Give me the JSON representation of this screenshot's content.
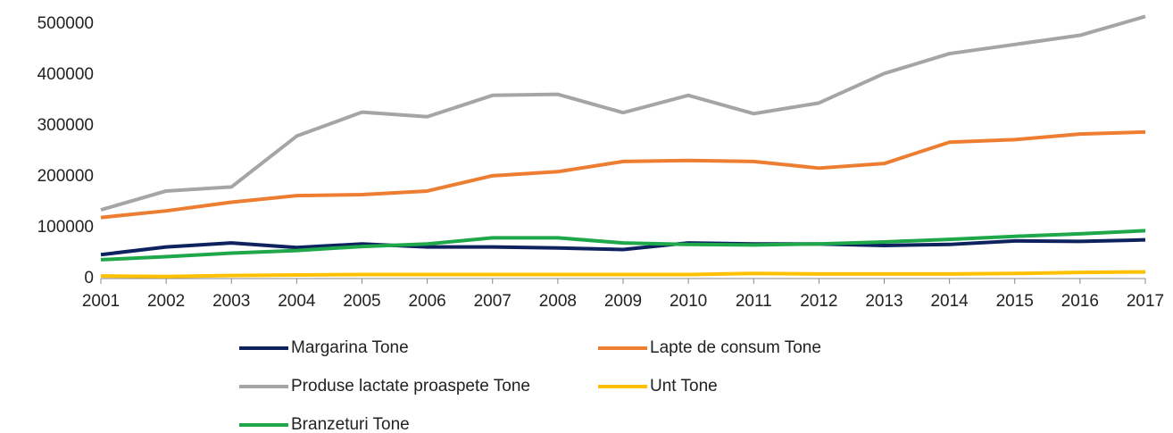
{
  "chart_data": {
    "type": "line",
    "categories": [
      "2001",
      "2002",
      "2003",
      "2004",
      "2005",
      "2006",
      "2007",
      "2008",
      "2009",
      "2010",
      "2011",
      "2012",
      "2013",
      "2014",
      "2015",
      "2016",
      "2017"
    ],
    "series": [
      {
        "name": "Margarina Tone",
        "color": "#0e2260",
        "values": [
          47000,
          62000,
          70000,
          61000,
          68000,
          62000,
          62000,
          60000,
          57000,
          70000,
          68000,
          68000,
          65000,
          67000,
          74000,
          73000,
          76000
        ]
      },
      {
        "name": "Lapte de consum Tone",
        "color": "#ed7d31",
        "values": [
          120000,
          133000,
          150000,
          163000,
          165000,
          172000,
          202000,
          210000,
          230000,
          232000,
          230000,
          217000,
          226000,
          268000,
          273000,
          284000,
          288000
        ]
      },
      {
        "name": "Produse lactate proaspete Tone",
        "color": "#a5a5a5",
        "values": [
          135000,
          172000,
          180000,
          280000,
          327000,
          318000,
          360000,
          362000,
          326000,
          360000,
          324000,
          345000,
          403000,
          442000,
          460000,
          478000,
          515000
        ]
      },
      {
        "name": "Unt Tone",
        "color": "#ffc000",
        "values": [
          5000,
          4000,
          6000,
          7000,
          8000,
          8000,
          8000,
          8000,
          8000,
          8000,
          10000,
          9000,
          9000,
          9000,
          10000,
          12000,
          13000
        ]
      },
      {
        "name": "Branzeturi Tone",
        "color": "#1ea84a",
        "values": [
          37000,
          43000,
          50000,
          55000,
          63000,
          68000,
          80000,
          80000,
          70000,
          67000,
          66000,
          68000,
          72000,
          77000,
          83000,
          88000,
          94000
        ]
      }
    ],
    "ylim": [
      0,
      500000
    ],
    "yticks": [
      0,
      100000,
      200000,
      300000,
      400000,
      500000
    ],
    "grid": false
  }
}
